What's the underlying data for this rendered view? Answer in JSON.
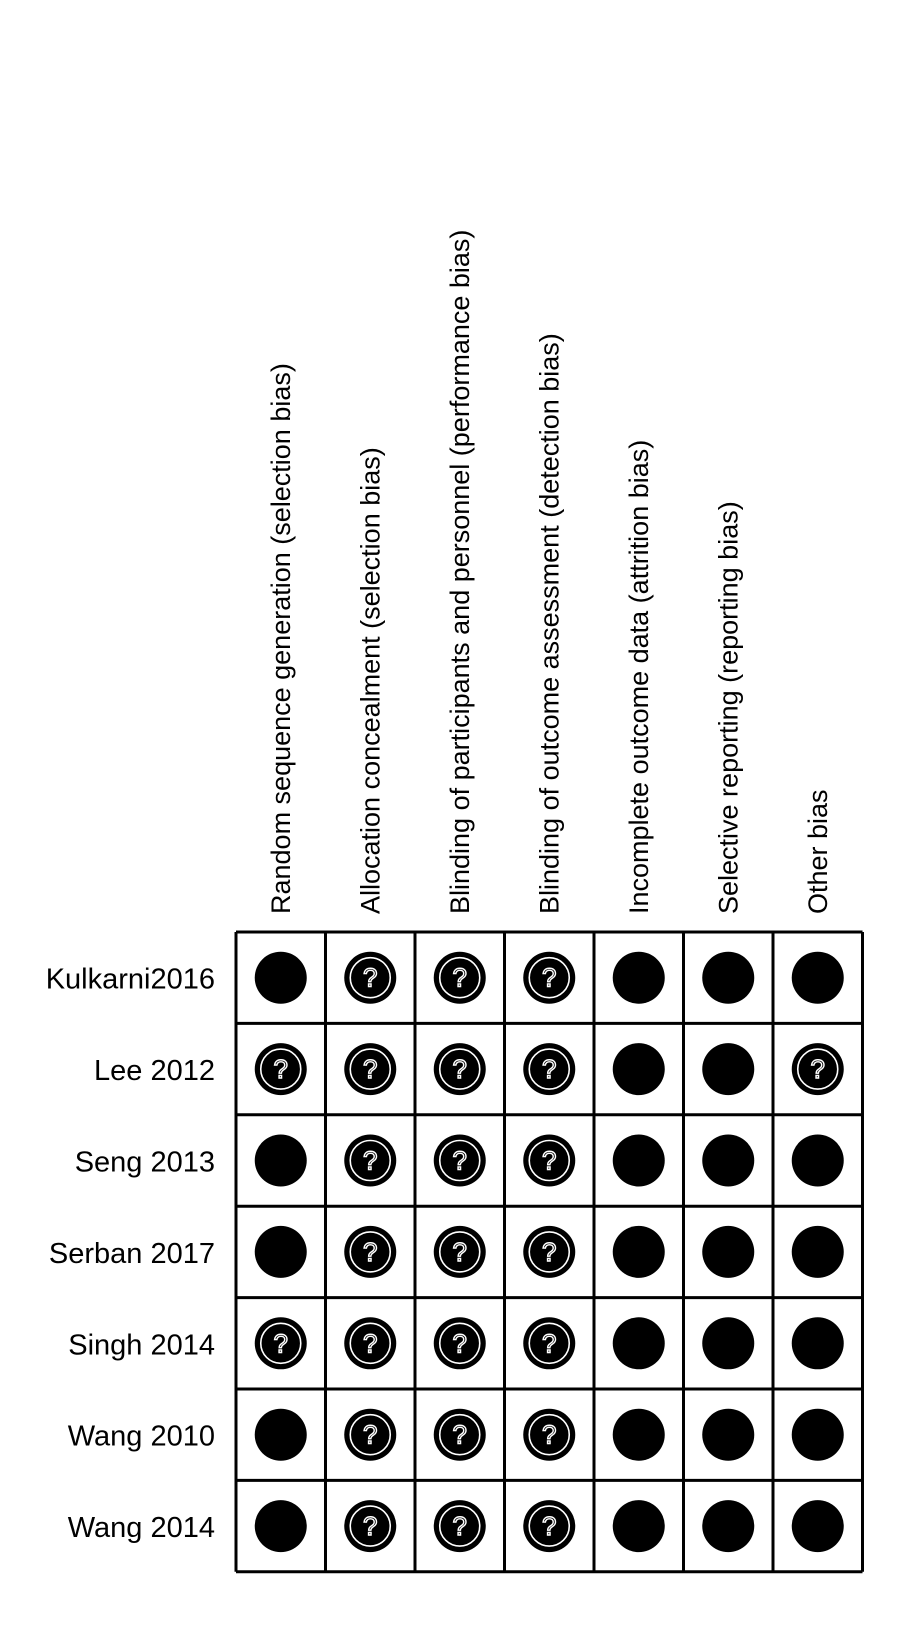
{
  "chart_data": {
    "type": "table",
    "title": "",
    "columns": [
      "Random sequence generation (selection bias)",
      "Allocation concealment (selection bias)",
      "Blinding of participants and personnel (performance bias)",
      "Blinding of outcome assessment (detection bias)",
      "Incomplete outcome data (attrition bias)",
      "Selective reporting (reporting bias)",
      "Other bias"
    ],
    "rows": [
      "Kulkarni2016",
      "Lee 2012",
      "Seng 2013",
      "Serban 2017",
      "Singh 2014",
      "Wang 2010",
      "Wang 2014"
    ],
    "judgement_symbols": {
      "unclear": "?",
      "low": ""
    },
    "judgements": [
      [
        "low",
        "unclear",
        "unclear",
        "unclear",
        "low",
        "low",
        "low"
      ],
      [
        "unclear",
        "unclear",
        "unclear",
        "unclear",
        "low",
        "low",
        "unclear"
      ],
      [
        "low",
        "unclear",
        "unclear",
        "unclear",
        "low",
        "low",
        "low"
      ],
      [
        "low",
        "unclear",
        "unclear",
        "unclear",
        "low",
        "low",
        "low"
      ],
      [
        "unclear",
        "unclear",
        "unclear",
        "unclear",
        "low",
        "low",
        "low"
      ],
      [
        "low",
        "unclear",
        "unclear",
        "unclear",
        "low",
        "low",
        "low"
      ],
      [
        "low",
        "unclear",
        "unclear",
        "unclear",
        "low",
        "low",
        "low"
      ]
    ],
    "colors": {
      "dot": "#000000",
      "symbol": "#ffffff",
      "grid": "#000000",
      "background": "#ffffff"
    }
  }
}
